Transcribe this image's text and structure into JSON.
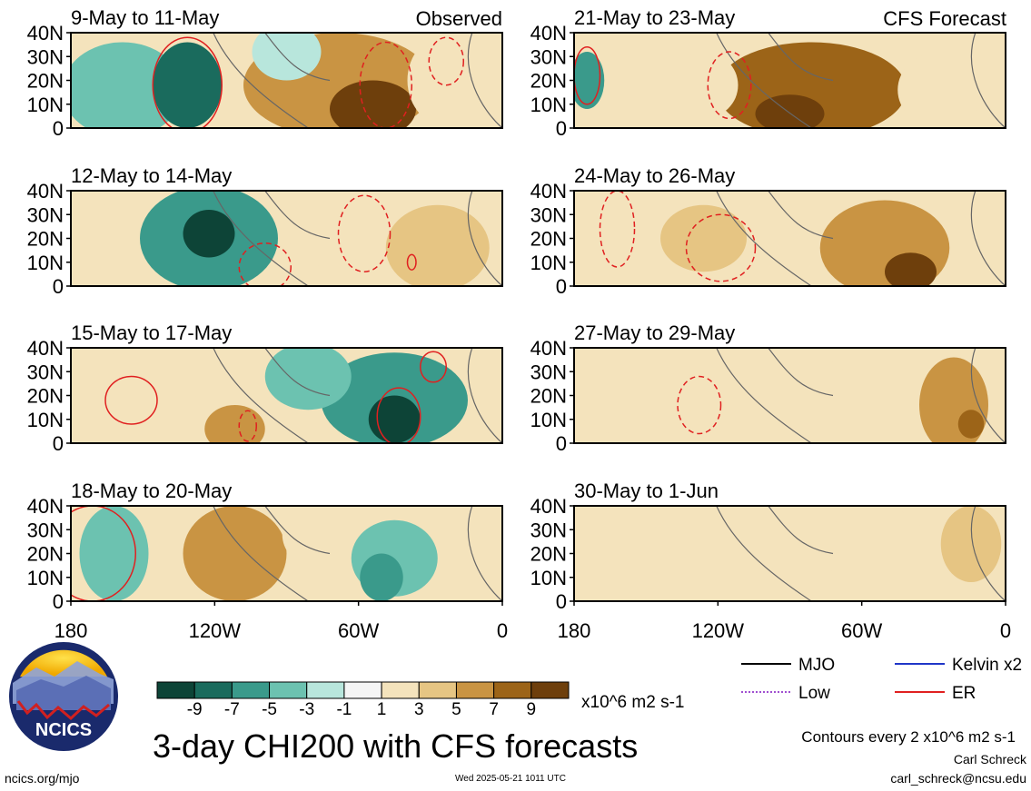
{
  "chart_data": {
    "type": "heatmap",
    "variable": "CHI200",
    "unit": "x10^6 m2 s-1",
    "title": "3-day CHI200 with CFS forecasts",
    "contour_note": "Contours every 2 x10^6 m2 s-1",
    "panel_labels": {
      "observed": "Observed",
      "forecast": "CFS Forecast"
    },
    "lat_ticks": [
      "40N",
      "30N",
      "20N",
      "10N",
      "0"
    ],
    "lon_ticks": [
      "180",
      "120W",
      "60W",
      "0"
    ],
    "colorbar": {
      "labels": [
        "-9",
        "-7",
        "-5",
        "-3",
        "-1",
        "1",
        "3",
        "5",
        "7",
        "9"
      ],
      "colors": [
        "#0d4437",
        "#1a6b5d",
        "#3a9a8b",
        "#6cc2b0",
        "#b8e6dc",
        "#f5f5f5",
        "#f4e3bc",
        "#e6c583",
        "#c99443",
        "#9c6418",
        "#6e3f0c"
      ]
    },
    "legend": [
      {
        "label": "MJO",
        "color": "#000000",
        "style": "solid"
      },
      {
        "label": "Kelvin x2",
        "color": "#2036c8",
        "style": "solid"
      },
      {
        "label": "Low",
        "color": "#a050d0",
        "style": "dotted"
      },
      {
        "label": "ER",
        "color": "#e02020",
        "style": "solid"
      }
    ],
    "observed": [
      {
        "period": "9-May to 11-May"
      },
      {
        "period": "12-May to 14-May"
      },
      {
        "period": "15-May to 17-May"
      },
      {
        "period": "18-May to 20-May"
      }
    ],
    "forecast": [
      {
        "period": "21-May to 23-May"
      },
      {
        "period": "24-May to 26-May"
      },
      {
        "period": "27-May to 29-May"
      },
      {
        "period": "30-May to 1-Jun"
      }
    ]
  },
  "logo": {
    "text": "NCICS"
  },
  "footer": {
    "website": "ncics.org/mjo",
    "timestamp": "Wed 2025-05-21 1011 UTC",
    "author": "Carl Schreck",
    "email": "carl_schreck@ncsu.edu"
  }
}
